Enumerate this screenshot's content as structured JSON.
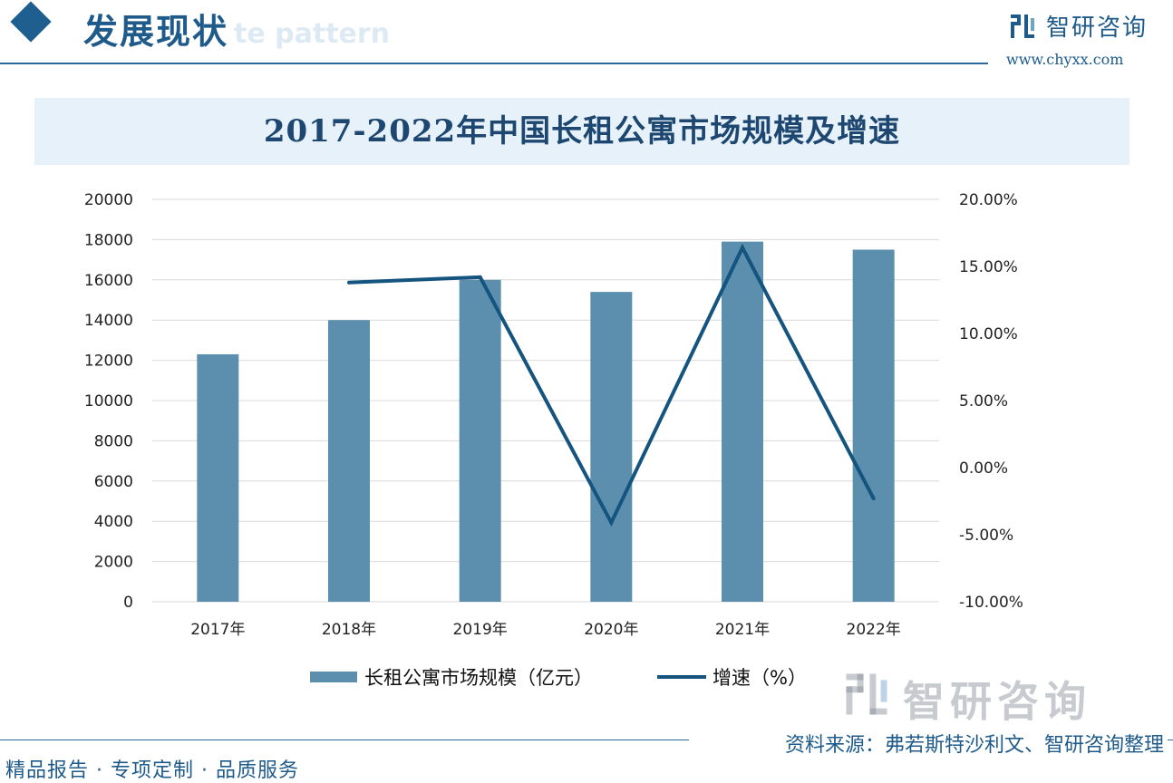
{
  "header": {
    "section_title": "发展现状",
    "section_subtitle": "te pattern",
    "brand_name": "智研咨询",
    "brand_url": "www.chyxx.com"
  },
  "watermark": {
    "text": "智研咨询"
  },
  "footer": {
    "left": "精品报告 · 专项定制 · 品质服务",
    "source": "资料来源：弗若斯特沙利文、智研咨询整理"
  },
  "colors": {
    "bar": "#5b8fad",
    "line": "#14547f",
    "brand": "#1e5a8a",
    "title_band": "#e6f1f9"
  },
  "chart_data": {
    "type": "bar",
    "title": "2017-2022年中国长租公寓市场规模及增速",
    "categories": [
      "2017年",
      "2018年",
      "2019年",
      "2020年",
      "2021年",
      "2022年"
    ],
    "series": [
      {
        "name": "长租公寓市场规模（亿元）",
        "type": "bar",
        "axis": "left",
        "values": [
          12300,
          14000,
          16000,
          15400,
          17900,
          17500
        ]
      },
      {
        "name": "增速（%）",
        "type": "line",
        "axis": "right",
        "values": [
          null,
          13.8,
          14.2,
          -4.1,
          16.4,
          -2.3
        ]
      }
    ],
    "y_left": {
      "min": 0,
      "max": 20000,
      "step": 2000,
      "ticks": [
        "0",
        "2000",
        "4000",
        "6000",
        "8000",
        "10000",
        "12000",
        "14000",
        "16000",
        "18000",
        "20000"
      ]
    },
    "y_right": {
      "min": -10,
      "max": 20,
      "step": 5,
      "ticks": [
        "-10.00%",
        "-5.00%",
        "0.00%",
        "5.00%",
        "10.00%",
        "15.00%",
        "20.00%"
      ]
    },
    "grid": true,
    "legend_position": "bottom"
  }
}
